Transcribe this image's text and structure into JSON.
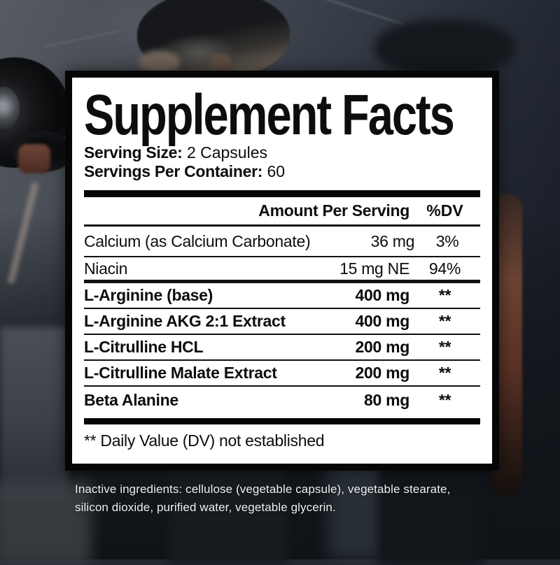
{
  "label": {
    "title": "Supplement Facts",
    "serving_size": {
      "label": "Serving Size:",
      "value": "2 Capsules"
    },
    "servings_per_container": {
      "label": "Servings Per Container:",
      "value": "60"
    },
    "table": {
      "amount_header": "Amount Per Serving",
      "dv_header": "%DV",
      "rows": [
        {
          "name": "Calcium (as Calcium Carbonate)",
          "amount": "36 mg",
          "dv": "3%",
          "bold": false
        },
        {
          "name": "Niacin",
          "amount": "15 mg NE",
          "dv": "94%",
          "bold": false
        },
        {
          "name": "L-Arginine (base)",
          "amount": "400 mg",
          "dv": "**",
          "bold": true
        },
        {
          "name": "L-Arginine AKG 2:1 Extract",
          "amount": "400 mg",
          "dv": "**",
          "bold": true
        },
        {
          "name": "L-Citrulline HCL",
          "amount": "200 mg",
          "dv": "**",
          "bold": true
        },
        {
          "name": "L-Citrulline Malate Extract",
          "amount": "200 mg",
          "dv": "**",
          "bold": true
        },
        {
          "name": "Beta Alanine",
          "amount": "80 mg",
          "dv": "**",
          "bold": true
        }
      ],
      "footnote": "** Daily Value (DV) not established"
    },
    "inactive_ingredients": {
      "line1": "Inactive ingredients: cellulose (vegetable capsule), vegetable stearate,",
      "line2": "silicon dioxide, purified water, vegetable glycerin."
    }
  },
  "colors": {
    "panel_bg": "#ffffff",
    "panel_border": "#060606",
    "label_text": "#0d0d0d",
    "inactive_text": "#eef0f2",
    "photo_wall": "#4a4f57",
    "photo_dark": "#10141a",
    "skin_left_arm": "#7c6f63",
    "skin_right_arm": "#63392a"
  }
}
